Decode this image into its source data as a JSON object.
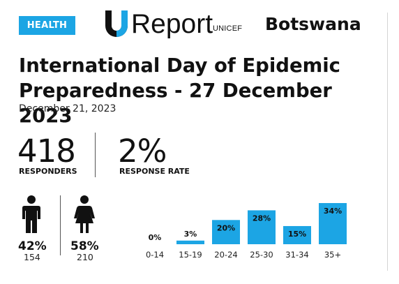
{
  "category_badge": "HEALTH",
  "logo": {
    "wordmark": "Report",
    "org": "UNICEF",
    "icon": "u-logo-icon"
  },
  "country": "Botswana",
  "title_line1": "International Day of Epidemic",
  "title_line2": "Preparedness - 27 December 2023",
  "date": "December 21, 2023",
  "stats": {
    "responders_value": "418",
    "responders_label": "RESPONDERS",
    "rate_value": "2%",
    "rate_label": "RESPONSE RATE"
  },
  "gender": {
    "male": {
      "icon": "male-person-icon",
      "percent": "42%",
      "count": "154"
    },
    "female": {
      "icon": "female-person-icon",
      "percent": "58%",
      "count": "210"
    }
  },
  "colors": {
    "accent": "#1ca5e4",
    "text": "#111111"
  },
  "chart_data": {
    "type": "bar",
    "categories": [
      "0-14",
      "15-19",
      "20-24",
      "25-30",
      "31-34",
      "35+"
    ],
    "values": [
      0,
      3,
      20,
      28,
      15,
      34
    ],
    "value_labels": [
      "0%",
      "3%",
      "20%",
      "28%",
      "15%",
      "34%"
    ],
    "unit": "%",
    "ylim": [
      0,
      34
    ],
    "grid": false,
    "bar_color": "#1ca5e4"
  }
}
